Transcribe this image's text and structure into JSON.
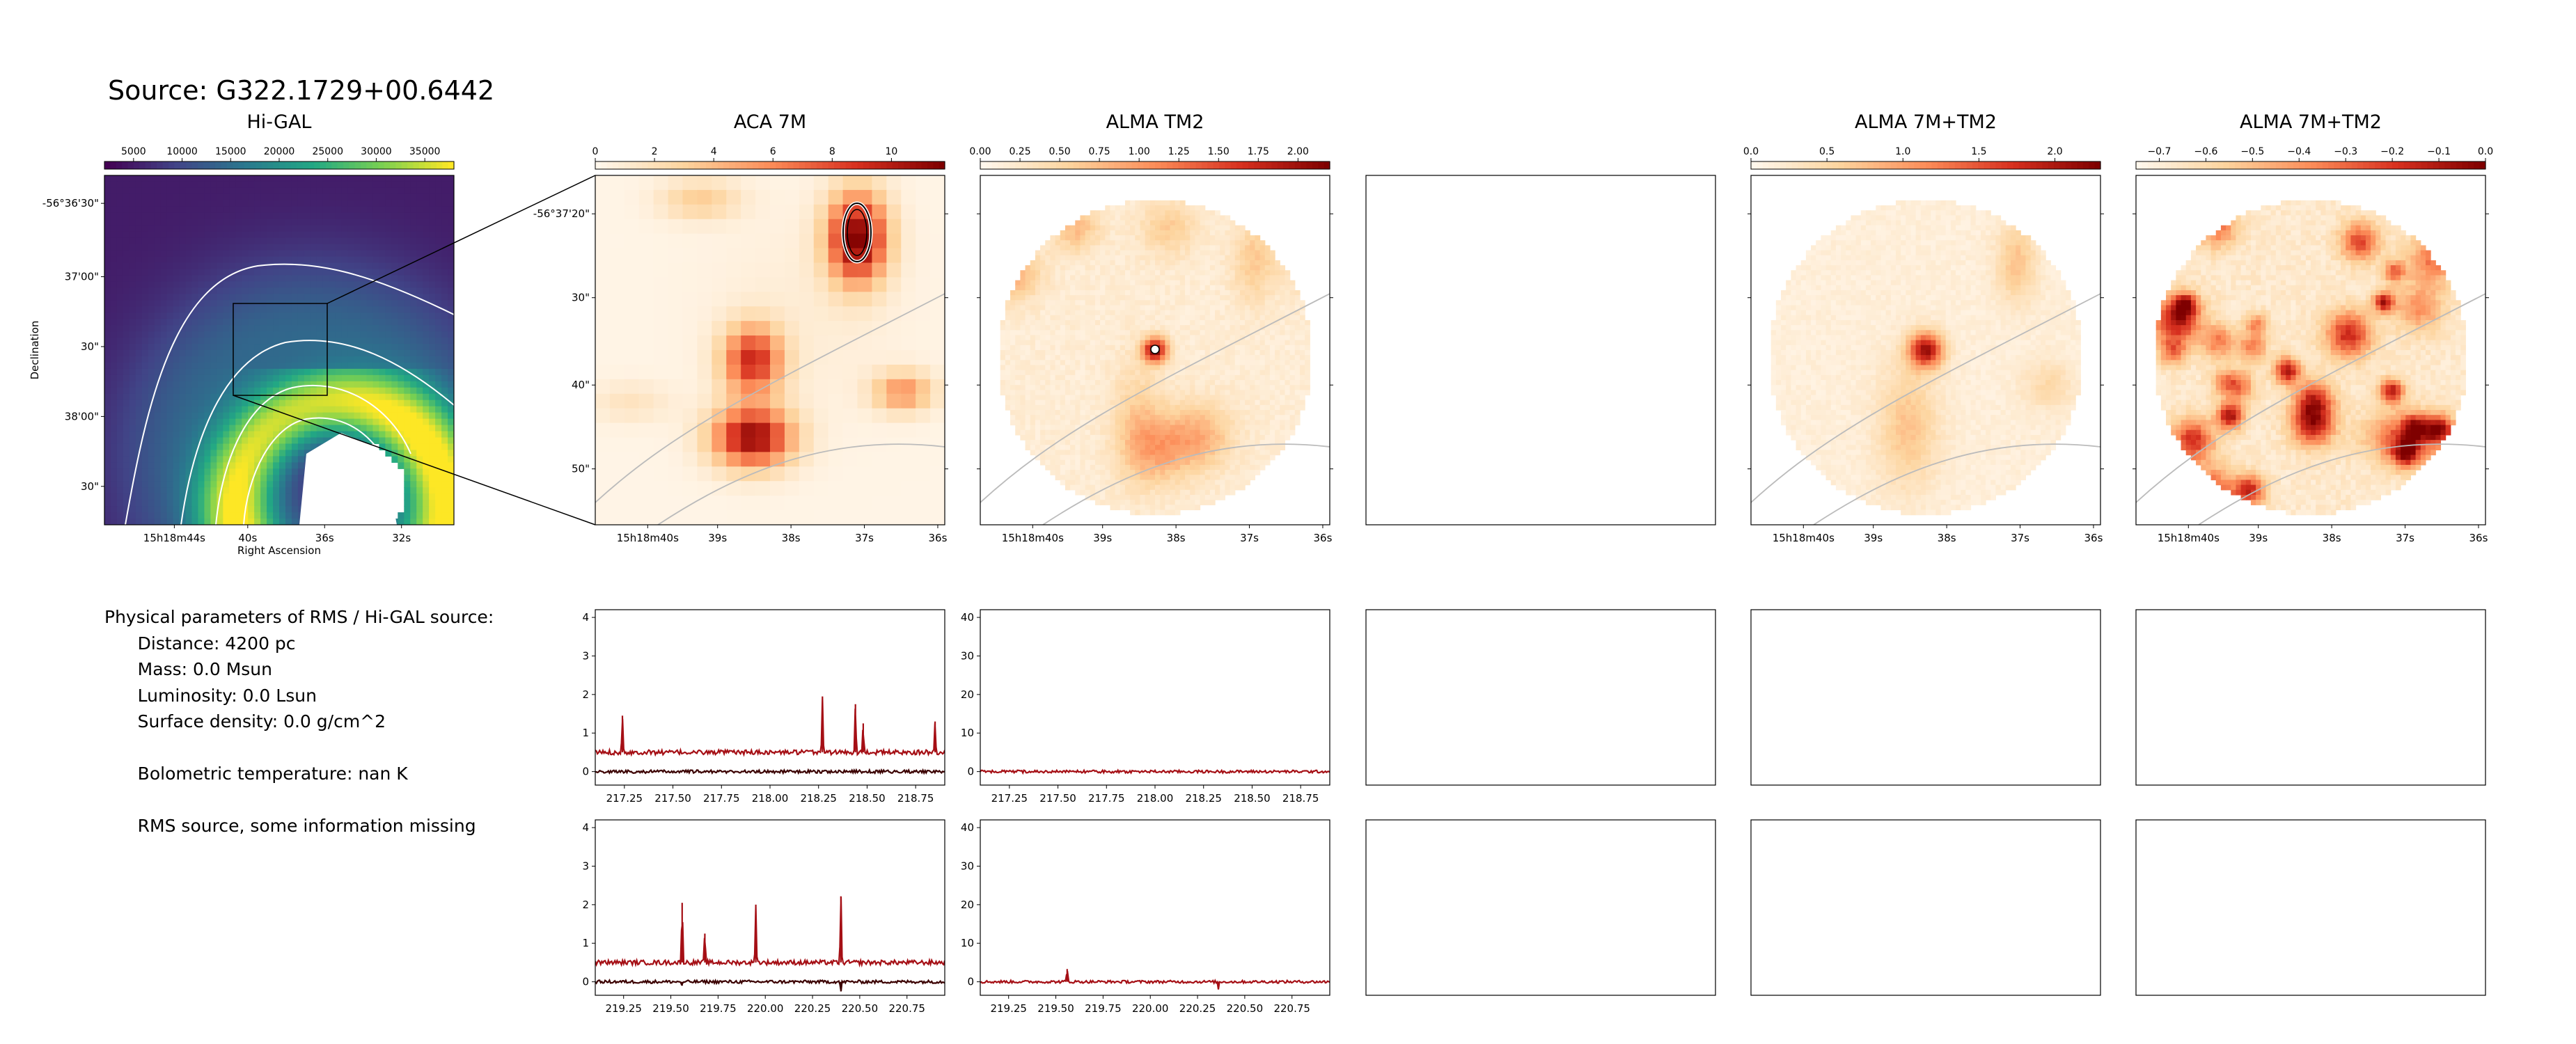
{
  "page": {
    "title": "Source: G322.1729+00.6442",
    "info_lines": [
      "Physical parameters of RMS / Hi-GAL source:",
      "      Distance: 4200 pc",
      "      Mass: 0.0 Msun",
      "      Luminosity: 0.0 Lsun",
      "      Surface density: 0.0 g/cm^2",
      "",
      "      Bolometric temperature: nan K",
      "",
      "      RMS source, some information missing"
    ]
  },
  "colors": {
    "viridis": [
      "#440154",
      "#414487",
      "#2a788e",
      "#22a884",
      "#7ad151",
      "#fde725"
    ],
    "orrd": [
      "#fff7ec",
      "#fdd49e",
      "#fc8d59",
      "#d7301f",
      "#7f0000"
    ],
    "spectrum_line": "#a50f15",
    "spectrum_dark": "#3b0000",
    "contour": "#bbbbbb"
  },
  "chart_data": [
    {
      "type": "heatmap",
      "id": "higal",
      "title": "Hi-GAL",
      "colorbar_ticks": [
        "5000",
        "10000",
        "15000",
        "20000",
        "25000",
        "30000",
        "35000"
      ],
      "colorbar_range": [
        2000,
        38000
      ],
      "xlabel": "Right Ascension",
      "ylabel": "Declination",
      "xticks": [
        "15h18m44s",
        "40s",
        "36s",
        "32s"
      ],
      "yticks": [
        "-56°36'30\"",
        "37'00\"",
        "30\"",
        "38'00\"",
        "30\""
      ]
    },
    {
      "type": "heatmap",
      "id": "aca7m",
      "title": "ACA 7M",
      "colorbar_ticks": [
        "0",
        "2",
        "4",
        "6",
        "8",
        "10"
      ],
      "colorbar_range": [
        0,
        11.8
      ],
      "xticks": [
        "15h18m40s",
        "39s",
        "38s",
        "37s",
        "36s"
      ],
      "yticks": [
        "-56°37'20\"",
        "30\"",
        "40\"",
        "50\""
      ]
    },
    {
      "type": "heatmap",
      "id": "tm2",
      "title": "ALMA TM2",
      "colorbar_ticks": [
        "0.00",
        "0.25",
        "0.50",
        "0.75",
        "1.00",
        "1.25",
        "1.50",
        "1.75",
        "2.00"
      ],
      "colorbar_range": [
        0,
        2.2
      ],
      "xticks": [
        "15h18m40s",
        "39s",
        "38s",
        "37s",
        "36s"
      ]
    },
    {
      "type": "heatmap",
      "id": "combined",
      "title": "ALMA 7M+TM2",
      "colorbar_ticks": [
        "0.0",
        "0.5",
        "1.0",
        "1.5",
        "2.0"
      ],
      "colorbar_range": [
        0,
        2.3
      ],
      "xticks": [
        "15h18m40s",
        "39s",
        "38s",
        "37s",
        "36s"
      ]
    },
    {
      "type": "heatmap",
      "id": "residual",
      "title": "ALMA 7M+TM2",
      "colorbar_ticks": [
        "−0.7",
        "−0.6",
        "−0.5",
        "−0.4",
        "−0.3",
        "−0.2",
        "−0.1",
        "0.0"
      ],
      "colorbar_range": [
        -0.75,
        0
      ],
      "xticks": [
        "15h18m40s",
        "39s",
        "38s",
        "37s",
        "36s"
      ]
    },
    {
      "type": "line",
      "id": "spec-aca-1",
      "xrange": [
        217.1,
        218.9
      ],
      "yrange": [
        -0.35,
        4.2
      ],
      "xticks": [
        "217.25",
        "217.50",
        "217.75",
        "218.00",
        "218.25",
        "218.50",
        "218.75"
      ],
      "yticks": [
        "0",
        "1",
        "2",
        "3",
        "4"
      ],
      "series": [
        {
          "baseline": 0.5,
          "noise": 0.06,
          "peaks": [
            [
              217.24,
              0.95
            ],
            [
              218.27,
              1.45
            ],
            [
              218.44,
              1.25
            ],
            [
              218.48,
              0.75
            ],
            [
              218.85,
              0.8
            ]
          ]
        },
        {
          "baseline": 0.0,
          "noise": 0.04,
          "peaks": []
        }
      ]
    },
    {
      "type": "line",
      "id": "spec-tm2-1",
      "xrange": [
        217.1,
        218.9
      ],
      "yrange": [
        -3.5,
        42
      ],
      "xticks": [
        "217.25",
        "217.50",
        "217.75",
        "218.00",
        "218.25",
        "218.50",
        "218.75"
      ],
      "yticks": [
        "0",
        "10",
        "20",
        "30",
        "40"
      ],
      "series": [
        {
          "baseline": 0.0,
          "noise": 0.35,
          "peaks": []
        }
      ]
    },
    {
      "type": "line",
      "id": "spec-aca-2",
      "xrange": [
        219.1,
        220.95
      ],
      "yrange": [
        -0.35,
        4.2
      ],
      "xticks": [
        "219.25",
        "219.50",
        "219.75",
        "220.00",
        "220.25",
        "220.50",
        "220.75"
      ],
      "yticks": [
        "0",
        "1",
        "2",
        "3",
        "4"
      ],
      "series": [
        {
          "baseline": 0.5,
          "noise": 0.06,
          "peaks": [
            [
              219.56,
              1.55
            ],
            [
              219.68,
              0.75
            ],
            [
              219.95,
              1.5
            ],
            [
              220.4,
              1.72
            ]
          ]
        },
        {
          "baseline": 0.0,
          "noise": 0.04,
          "peaks": [
            [
              219.56,
              -0.1
            ],
            [
              220.4,
              -0.25
            ]
          ]
        }
      ]
    },
    {
      "type": "line",
      "id": "spec-tm2-2",
      "xrange": [
        219.1,
        220.95
      ],
      "yrange": [
        -3.5,
        42
      ],
      "xticks": [
        "219.25",
        "219.50",
        "219.75",
        "220.00",
        "220.25",
        "220.50",
        "220.75"
      ],
      "yticks": [
        "0",
        "10",
        "20",
        "30",
        "40"
      ],
      "series": [
        {
          "baseline": 0.0,
          "noise": 0.35,
          "peaks": [
            [
              219.56,
              3.3
            ],
            [
              220.36,
              -1.8
            ]
          ]
        }
      ]
    }
  ]
}
